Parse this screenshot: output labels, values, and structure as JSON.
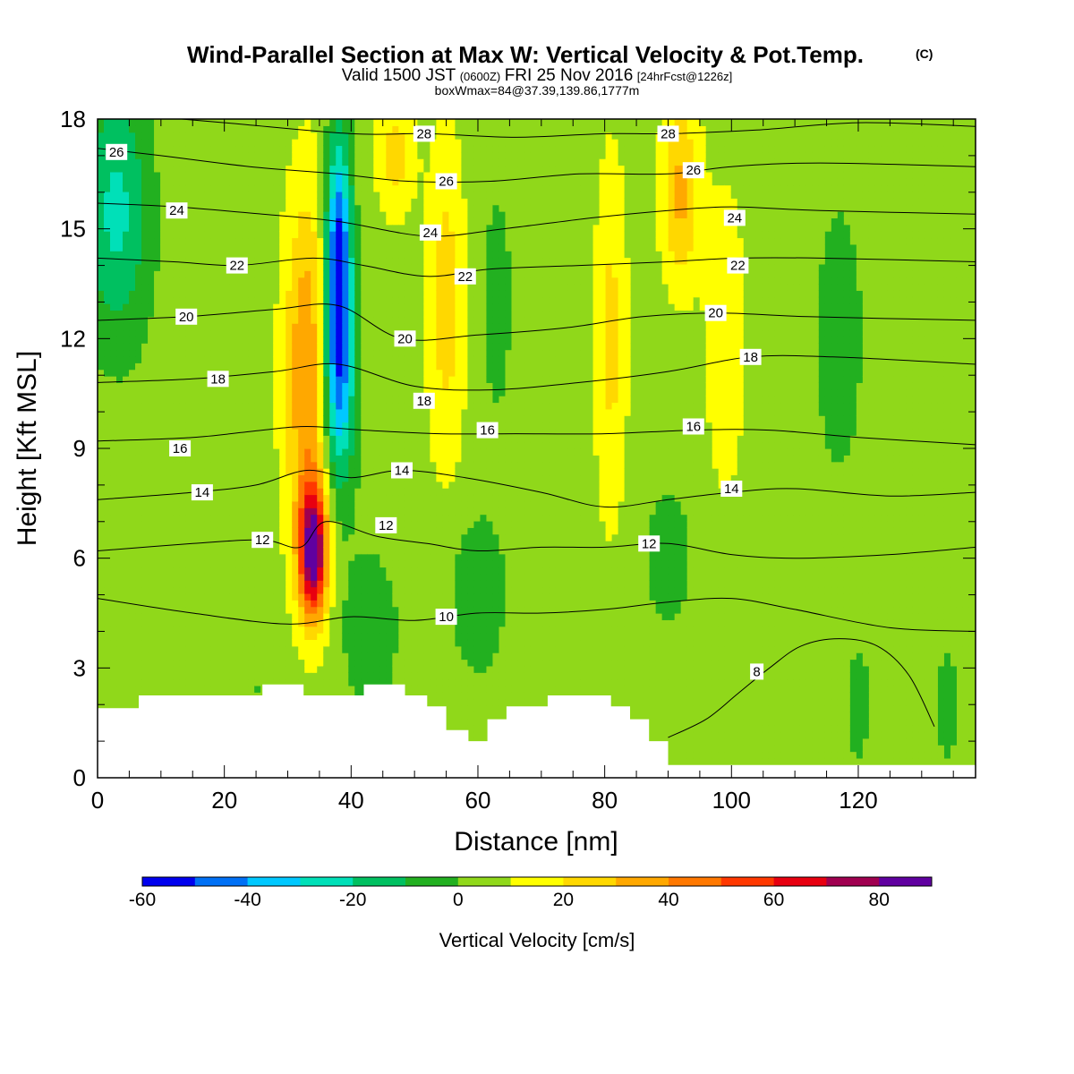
{
  "title": {
    "main": "Wind-Parallel Section at Max W: Vertical Velocity & Pot.Temp.",
    "copyright": "(C)",
    "valid_prefix": "Valid 1500 JST",
    "valid_z": "(0600Z)",
    "valid_date": "FRI 25 Nov 2016",
    "forecast": "[24hrFcst@1226z]",
    "box": "boxWmax=84@37.39,139.86,1777m"
  },
  "chart_data": {
    "type": "heatmap",
    "xlabel": "Distance [nm]",
    "ylabel": "Height [Kft MSL]",
    "xlim": [
      0,
      138.5
    ],
    "ylim": [
      0,
      18
    ],
    "x_ticks": [
      "0",
      "20",
      "40",
      "60",
      "80",
      "100",
      "120"
    ],
    "y_ticks": [
      "0",
      "3",
      "6",
      "9",
      "12",
      "15",
      "18"
    ],
    "colorbar": {
      "title": "Vertical Velocity [cm/s]",
      "labels": [
        "-60",
        "-40",
        "-20",
        "0",
        "20",
        "40",
        "60",
        "80"
      ],
      "boundaries": [
        -60,
        -50,
        -40,
        -30,
        -20,
        -10,
        0,
        10,
        20,
        30,
        40,
        50,
        60,
        70,
        80,
        90
      ],
      "colors": [
        "#0000ee",
        "#0070f5",
        "#00c8ff",
        "#00e0b8",
        "#00c060",
        "#22b020",
        "#90d81a",
        "#ffff00",
        "#ffd800",
        "#ffa800",
        "#ff7800",
        "#ff3800",
        "#e80010",
        "#a00050",
        "#6000a0"
      ]
    },
    "background_value_cm_s": 5,
    "vertical_velocity_features": [
      {
        "name": "A",
        "x_nm": 3,
        "z_kft": 15.5,
        "w_cm_s": -28,
        "wx": 5,
        "wz": 3.5
      },
      {
        "name": "B",
        "x_nm": 14,
        "z_kft": 7.5,
        "w_cm_s": -5,
        "wx": 6,
        "wz": 5
      },
      {
        "name": "C",
        "x_nm": 25,
        "z_kft": 2.5,
        "w_cm_s": -5,
        "wx": 4,
        "wz": 1.5
      },
      {
        "name": "D",
        "x_nm": 33,
        "z_kft": 11,
        "w_cm_s": 35,
        "wx": 3.6,
        "wz": 5
      },
      {
        "name": "E",
        "x_nm": 34,
        "z_kft": 6.2,
        "w_cm_s": 78,
        "wx": 2.2,
        "wz": 1.8
      },
      {
        "name": "F",
        "x_nm": 38,
        "z_kft": 14,
        "w_cm_s": -62,
        "wx": 2,
        "wz": 3.5
      },
      {
        "name": "G",
        "x_nm": 38,
        "z_kft": 10.5,
        "w_cm_s": -32,
        "wx": 2.8,
        "wz": 3
      },
      {
        "name": "H",
        "x_nm": 43,
        "z_kft": 4,
        "w_cm_s": -15,
        "wx": 4,
        "wz": 2
      },
      {
        "name": "I",
        "x_nm": 47,
        "z_kft": 17,
        "w_cm_s": 20,
        "wx": 3,
        "wz": 1.6
      },
      {
        "name": "J",
        "x_nm": 55,
        "z_kft": 13,
        "w_cm_s": 20,
        "wx": 3,
        "wz": 4.5
      },
      {
        "name": "K",
        "x_nm": 60,
        "z_kft": 5,
        "w_cm_s": -15,
        "wx": 4,
        "wz": 2
      },
      {
        "name": "L",
        "x_nm": 63,
        "z_kft": 13,
        "w_cm_s": -8,
        "wx": 3,
        "wz": 4
      },
      {
        "name": "M",
        "x_nm": 81,
        "z_kft": 12,
        "w_cm_s": 18,
        "wx": 2.5,
        "wz": 5
      },
      {
        "name": "N",
        "x_nm": 92,
        "z_kft": 16,
        "w_cm_s": 28,
        "wx": 3,
        "wz": 2.5
      },
      {
        "name": "O",
        "x_nm": 99,
        "z_kft": 12,
        "w_cm_s": 15,
        "wx": 3,
        "wz": 4
      },
      {
        "name": "P",
        "x_nm": 90,
        "z_kft": 6,
        "w_cm_s": -8,
        "wx": 5,
        "wz": 2.5
      },
      {
        "name": "Q",
        "x_nm": 117,
        "z_kft": 12,
        "w_cm_s": -8,
        "wx": 5,
        "wz": 5
      },
      {
        "name": "R",
        "x_nm": 120,
        "z_kft": 2,
        "w_cm_s": -8,
        "wx": 2.5,
        "wz": 2
      },
      {
        "name": "S",
        "x_nm": 134,
        "z_kft": 2,
        "w_cm_s": -8,
        "wx": 2.5,
        "wz": 2
      }
    ],
    "theta_contours": [
      {
        "label": "8",
        "label_pos": [
          104,
          2.9
        ],
        "points": [
          [
            90,
            1.1
          ],
          [
            96,
            1.6
          ],
          [
            101,
            2.3
          ],
          [
            106,
            3.0
          ],
          [
            111,
            3.6
          ],
          [
            117,
            3.8
          ],
          [
            123,
            3.6
          ],
          [
            128,
            2.8
          ],
          [
            132,
            1.4
          ]
        ]
      },
      {
        "label": "10",
        "label_pos": [
          55,
          4.4
        ],
        "points": [
          [
            0,
            4.9
          ],
          [
            15,
            4.5
          ],
          [
            30,
            4.2
          ],
          [
            40,
            4.4
          ],
          [
            50,
            4.3
          ],
          [
            60,
            4.5
          ],
          [
            70,
            4.5
          ],
          [
            80,
            4.6
          ],
          [
            90,
            4.8
          ],
          [
            100,
            4.9
          ],
          [
            110,
            4.6
          ],
          [
            125,
            4.1
          ],
          [
            138.5,
            4.0
          ]
        ]
      },
      {
        "label": "12",
        "label_pos": [
          26,
          6.5
        ],
        "points": [
          [
            0,
            6.2
          ],
          [
            15,
            6.4
          ],
          [
            26,
            6.5
          ],
          [
            32,
            6.3
          ],
          [
            36,
            7.0
          ],
          [
            44,
            6.6
          ],
          [
            52,
            6.4
          ],
          [
            60,
            6.2
          ],
          [
            70,
            6.3
          ],
          [
            80,
            6.3
          ],
          [
            90,
            6.4
          ],
          [
            100,
            6.1
          ],
          [
            110,
            6.0
          ],
          [
            125,
            6.1
          ],
          [
            138.5,
            6.3
          ]
        ]
      },
      {
        "label": "12",
        "label_pos": [
          45.5,
          6.9
        ],
        "points": []
      },
      {
        "label": "12",
        "label_pos": [
          87,
          6.4
        ],
        "points": []
      },
      {
        "label": "14",
        "label_pos": [
          16.5,
          7.8
        ],
        "points": [
          [
            0,
            7.6
          ],
          [
            15,
            7.8
          ],
          [
            25,
            8.0
          ],
          [
            33,
            8.4
          ],
          [
            40,
            8.2
          ],
          [
            48,
            8.4
          ],
          [
            58,
            8.2
          ],
          [
            70,
            7.8
          ],
          [
            80,
            7.4
          ],
          [
            90,
            7.6
          ],
          [
            100,
            7.8
          ],
          [
            110,
            7.9
          ],
          [
            125,
            7.7
          ],
          [
            138.5,
            7.8
          ]
        ]
      },
      {
        "label": "14",
        "label_pos": [
          48,
          8.4
        ],
        "points": []
      },
      {
        "label": "14",
        "label_pos": [
          100,
          7.9
        ],
        "points": []
      },
      {
        "label": "16",
        "label_pos": [
          13,
          9.0
        ],
        "points": [
          [
            0,
            9.2
          ],
          [
            15,
            9.3
          ],
          [
            26,
            9.5
          ],
          [
            33,
            9.6
          ],
          [
            42,
            9.5
          ],
          [
            54,
            9.4
          ],
          [
            66,
            9.4
          ],
          [
            80,
            9.4
          ],
          [
            94,
            9.5
          ],
          [
            106,
            9.5
          ],
          [
            120,
            9.3
          ],
          [
            138.5,
            9.1
          ]
        ]
      },
      {
        "label": "16",
        "label_pos": [
          61.5,
          9.5
        ],
        "points": []
      },
      {
        "label": "16",
        "label_pos": [
          94,
          9.6
        ],
        "points": []
      },
      {
        "label": "18",
        "label_pos": [
          19,
          10.9
        ],
        "points": [
          [
            0,
            10.8
          ],
          [
            15,
            10.9
          ],
          [
            28,
            11.1
          ],
          [
            38,
            11.3
          ],
          [
            50,
            10.7
          ],
          [
            62,
            10.6
          ],
          [
            76,
            10.8
          ],
          [
            90,
            11.1
          ],
          [
            103,
            11.5
          ],
          [
            116,
            11.5
          ],
          [
            138.5,
            11.3
          ]
        ]
      },
      {
        "label": "18",
        "label_pos": [
          51.5,
          10.3
        ],
        "points": []
      },
      {
        "label": "18",
        "label_pos": [
          103,
          11.5
        ],
        "points": []
      },
      {
        "label": "20",
        "label_pos": [
          14,
          12.6
        ],
        "points": [
          [
            0,
            12.5
          ],
          [
            14,
            12.6
          ],
          [
            28,
            12.8
          ],
          [
            38,
            12.9
          ],
          [
            48,
            12.0
          ],
          [
            60,
            12.1
          ],
          [
            74,
            12.3
          ],
          [
            86,
            12.6
          ],
          [
            98,
            12.7
          ],
          [
            112,
            12.6
          ],
          [
            138.5,
            12.5
          ]
        ]
      },
      {
        "label": "20",
        "label_pos": [
          48.5,
          12.0
        ],
        "points": []
      },
      {
        "label": "20",
        "label_pos": [
          97.5,
          12.7
        ],
        "points": []
      },
      {
        "label": "22",
        "label_pos": [
          22,
          14.0
        ],
        "points": [
          [
            0,
            14.2
          ],
          [
            12,
            14.1
          ],
          [
            22,
            14.0
          ],
          [
            34,
            14.2
          ],
          [
            42,
            14.0
          ],
          [
            52,
            13.7
          ],
          [
            62,
            13.9
          ],
          [
            76,
            14.0
          ],
          [
            90,
            14.1
          ],
          [
            101,
            14.2
          ],
          [
            114,
            14.2
          ],
          [
            138.5,
            14.1
          ]
        ]
      },
      {
        "label": "22",
        "label_pos": [
          58,
          13.7
        ],
        "points": []
      },
      {
        "label": "22",
        "label_pos": [
          101,
          14.0
        ],
        "points": []
      },
      {
        "label": "24",
        "label_pos": [
          12.5,
          15.5
        ],
        "points": [
          [
            0,
            15.7
          ],
          [
            12.5,
            15.6
          ],
          [
            26,
            15.4
          ],
          [
            38,
            15.2
          ],
          [
            52,
            14.8
          ],
          [
            64,
            15.0
          ],
          [
            78,
            15.3
          ],
          [
            90,
            15.5
          ],
          [
            100,
            15.6
          ],
          [
            114,
            15.5
          ],
          [
            138.5,
            15.4
          ]
        ]
      },
      {
        "label": "24",
        "label_pos": [
          52.5,
          14.9
        ],
        "points": []
      },
      {
        "label": "24",
        "label_pos": [
          100.5,
          15.3
        ],
        "points": []
      },
      {
        "label": "26",
        "label_pos": [
          3,
          17.1
        ],
        "points": [
          [
            0,
            17.2
          ],
          [
            10,
            17.0
          ],
          [
            24,
            16.7
          ],
          [
            38,
            16.5
          ],
          [
            49,
            16.3
          ],
          [
            62,
            16.3
          ],
          [
            76,
            16.5
          ],
          [
            90,
            16.5
          ],
          [
            100,
            16.7
          ],
          [
            114,
            16.8
          ],
          [
            138.5,
            16.7
          ]
        ]
      },
      {
        "label": "26",
        "label_pos": [
          55,
          16.3
        ],
        "points": []
      },
      {
        "label": "26",
        "label_pos": [
          94,
          16.6
        ],
        "points": []
      },
      {
        "label": "28",
        "label_pos": [
          51.5,
          17.6
        ],
        "points": [
          [
            0,
            18.2
          ],
          [
            20,
            17.9
          ],
          [
            40,
            17.6
          ],
          [
            52,
            17.6
          ],
          [
            66,
            17.5
          ],
          [
            80,
            17.6
          ],
          [
            90,
            17.6
          ],
          [
            104,
            17.7
          ],
          [
            120,
            17.9
          ],
          [
            138.5,
            17.8
          ]
        ]
      },
      {
        "label": "28",
        "label_pos": [
          90,
          17.6
        ],
        "points": []
      }
    ],
    "terrain_kft": [
      [
        0,
        1.9
      ],
      [
        6.5,
        1.9
      ],
      [
        6.5,
        2.25
      ],
      [
        26,
        2.25
      ],
      [
        26,
        2.55
      ],
      [
        32.5,
        2.55
      ],
      [
        32.5,
        2.25
      ],
      [
        42,
        2.25
      ],
      [
        42,
        2.55
      ],
      [
        48.5,
        2.55
      ],
      [
        48.5,
        2.25
      ],
      [
        52,
        2.25
      ],
      [
        52,
        1.95
      ],
      [
        55,
        1.95
      ],
      [
        55,
        1.3
      ],
      [
        58.5,
        1.3
      ],
      [
        58.5,
        1.0
      ],
      [
        61.5,
        1.0
      ],
      [
        61.5,
        1.6
      ],
      [
        64.5,
        1.6
      ],
      [
        64.5,
        1.95
      ],
      [
        71,
        1.95
      ],
      [
        71,
        2.25
      ],
      [
        81,
        2.25
      ],
      [
        81,
        1.95
      ],
      [
        84,
        1.95
      ],
      [
        84,
        1.6
      ],
      [
        87,
        1.6
      ],
      [
        87,
        1.0
      ],
      [
        90,
        1.0
      ],
      [
        90,
        0.35
      ],
      [
        138.5,
        0.35
      ]
    ]
  }
}
